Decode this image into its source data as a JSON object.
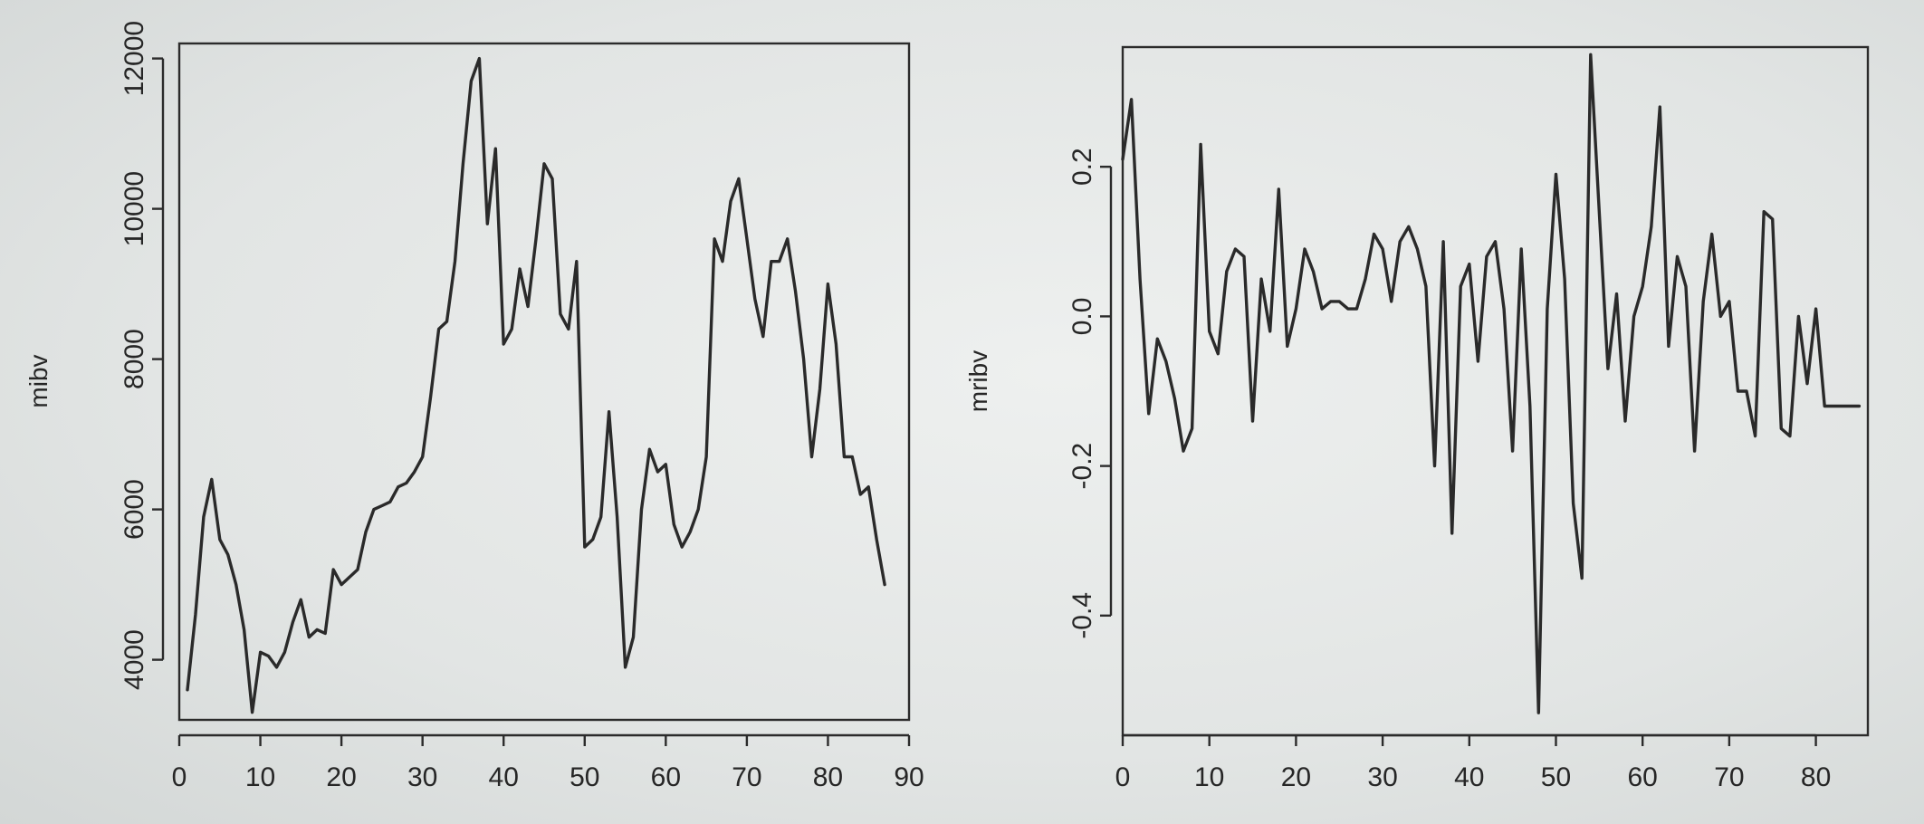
{
  "chart_data": [
    {
      "type": "line",
      "ylabel": "mibv",
      "xlim": [
        0,
        90
      ],
      "ylim": [
        3200,
        12200
      ],
      "x_ticks": [
        0,
        10,
        20,
        30,
        40,
        50,
        60,
        70,
        80,
        90
      ],
      "y_ticks": [
        4000,
        6000,
        8000,
        10000,
        12000
      ],
      "grid": false,
      "series": [
        {
          "x": [
            1,
            2,
            3,
            4,
            5,
            6,
            7,
            8,
            9,
            10,
            11,
            12,
            13,
            14,
            15,
            16,
            17,
            18,
            19,
            20,
            21,
            22,
            23,
            24,
            25,
            26,
            27,
            28,
            29,
            30,
            31,
            32,
            33,
            34,
            35,
            36,
            37,
            38,
            39,
            40,
            41,
            42,
            43,
            44,
            45,
            46,
            47,
            48,
            49,
            50,
            51,
            52,
            53,
            54,
            55,
            56,
            57,
            58,
            59,
            60,
            61,
            62,
            63,
            64,
            65,
            66,
            67,
            68,
            69,
            70,
            71,
            72,
            73,
            74,
            75,
            76,
            77,
            78,
            79,
            80,
            81,
            82,
            83,
            84,
            85,
            86,
            87
          ],
          "values": [
            3600,
            4600,
            5900,
            6400,
            5600,
            5400,
            5000,
            4400,
            3300,
            4100,
            4050,
            3900,
            4100,
            4500,
            4800,
            4300,
            4400,
            4350,
            5200,
            5000,
            5100,
            5200,
            5700,
            6000,
            6050,
            6100,
            6300,
            6350,
            6500,
            6700,
            7500,
            8400,
            8500,
            9300,
            10600,
            11700,
            12000,
            9800,
            10800,
            8200,
            8400,
            9200,
            8700,
            9600,
            10600,
            10400,
            8600,
            8400,
            9300,
            5500,
            5600,
            5900,
            7300,
            5900,
            3900,
            4300,
            6000,
            6800,
            6500,
            6600,
            5800,
            5500,
            5700,
            6000,
            6700,
            9600,
            9300,
            10100,
            10400,
            9600,
            8800,
            8300,
            9300,
            9300,
            9600,
            8900,
            8000,
            6700,
            7600,
            9000,
            8200,
            6700,
            6700,
            6200,
            6300,
            5600,
            5000
          ]
        }
      ]
    },
    {
      "type": "line",
      "ylabel": "mribv",
      "xlim": [
        0,
        86
      ],
      "ylim": [
        -0.56,
        0.36
      ],
      "x_ticks": [
        0,
        10,
        20,
        30,
        40,
        50,
        60,
        70,
        80
      ],
      "y_ticks": [
        -0.4,
        -0.2,
        0.0,
        0.2
      ],
      "y_tick_labels": [
        "-0.4",
        "-0.2",
        "0.0",
        "0.2"
      ],
      "grid": false,
      "series": [
        {
          "x": [
            0,
            1,
            2,
            3,
            4,
            5,
            6,
            7,
            8,
            9,
            10,
            11,
            12,
            13,
            14,
            15,
            16,
            17,
            18,
            19,
            20,
            21,
            22,
            23,
            24,
            25,
            26,
            27,
            28,
            29,
            30,
            31,
            32,
            33,
            34,
            35,
            36,
            37,
            38,
            39,
            40,
            41,
            42,
            43,
            44,
            45,
            46,
            47,
            48,
            49,
            50,
            51,
            52,
            53,
            54,
            55,
            56,
            57,
            58,
            59,
            60,
            61,
            62,
            63,
            64,
            65,
            66,
            67,
            68,
            69,
            70,
            71,
            72,
            73,
            74,
            75,
            76,
            77,
            78,
            79,
            80,
            81,
            82,
            83,
            84,
            85
          ],
          "values": [
            0.21,
            0.29,
            0.05,
            -0.13,
            -0.03,
            -0.06,
            -0.11,
            -0.18,
            -0.15,
            0.23,
            -0.02,
            -0.05,
            0.06,
            0.09,
            0.08,
            -0.14,
            0.05,
            -0.02,
            0.17,
            -0.04,
            0.01,
            0.09,
            0.06,
            0.01,
            0.02,
            0.02,
            0.01,
            0.01,
            0.05,
            0.11,
            0.09,
            0.02,
            0.1,
            0.12,
            0.09,
            0.04,
            -0.2,
            0.1,
            -0.29,
            0.04,
            0.07,
            -0.06,
            0.08,
            0.1,
            0.01,
            -0.18,
            0.09,
            -0.12,
            -0.53,
            0.01,
            0.19,
            0.05,
            -0.25,
            -0.35,
            0.35,
            0.14,
            -0.07,
            0.03,
            -0.14,
            0.0,
            0.04,
            0.12,
            0.28,
            -0.04,
            0.08,
            0.04,
            -0.18,
            0.02,
            0.11,
            0.0,
            0.02,
            -0.1,
            -0.1,
            -0.16,
            0.14,
            0.13,
            -0.15,
            -0.16,
            0.0,
            -0.09,
            0.01,
            -0.12,
            -0.12,
            -0.12,
            -0.12,
            -0.12
          ]
        }
      ]
    }
  ]
}
